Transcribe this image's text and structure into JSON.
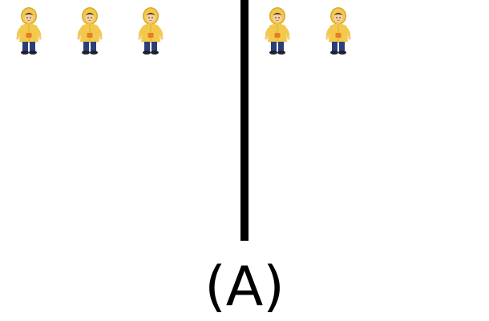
{
  "left_panel": {
    "figure_count": 3,
    "figure_icon": "child-in-yellow-raincoat-icon"
  },
  "right_panel": {
    "figure_count": 2,
    "figure_icon": "child-in-yellow-raincoat-icon"
  },
  "colors": {
    "raincoat": "#f2c94c",
    "raincoat_shadow": "#d9a92a",
    "pants": "#2c3e7a",
    "pocket": "#e67e22",
    "skin": "#f5cfa3",
    "divider": "#000000"
  },
  "caption": "(A)"
}
